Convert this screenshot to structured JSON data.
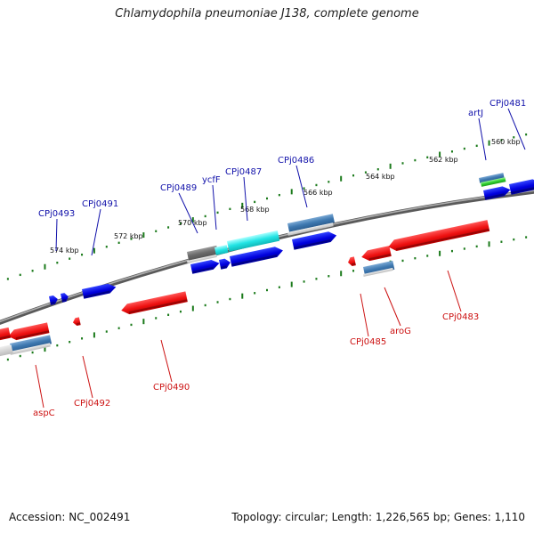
{
  "title": "Chlamydophila pneumoniae J138, complete genome",
  "footer": {
    "accession": "Accession: NC_002491",
    "summary": "Topology: circular; Length: 1,226,565 bp; Genes: 1,110"
  },
  "colors": {
    "forward_gene": "#0000dd",
    "reverse_gene": "#ee1111",
    "forward_label": "#1111aa",
    "reverse_label": "#cc1111",
    "backbone": "#888888",
    "tick": "#1a7a1a",
    "cds_gray": "#6f6f6f",
    "cds_steel": "#4a82b8",
    "cds_cyan": "#22e4e4",
    "cds_green": "#2fcf2f"
  },
  "kbp_ticks": [
    "574 kbp",
    "572 kbp",
    "570 kbp",
    "568 kbp",
    "566 kbp",
    "564 kbp",
    "562 kbp",
    "560 kbp"
  ],
  "forward_labels": [
    "CPj0493",
    "CPj0491",
    "CPj0489",
    "ycfF",
    "CPj0487",
    "CPj0486",
    "artJ",
    "CPj0481"
  ],
  "reverse_labels": [
    "aspC",
    "CPj0492",
    "CPj0490",
    "CPj0485",
    "aroG",
    "CPj0483"
  ]
}
